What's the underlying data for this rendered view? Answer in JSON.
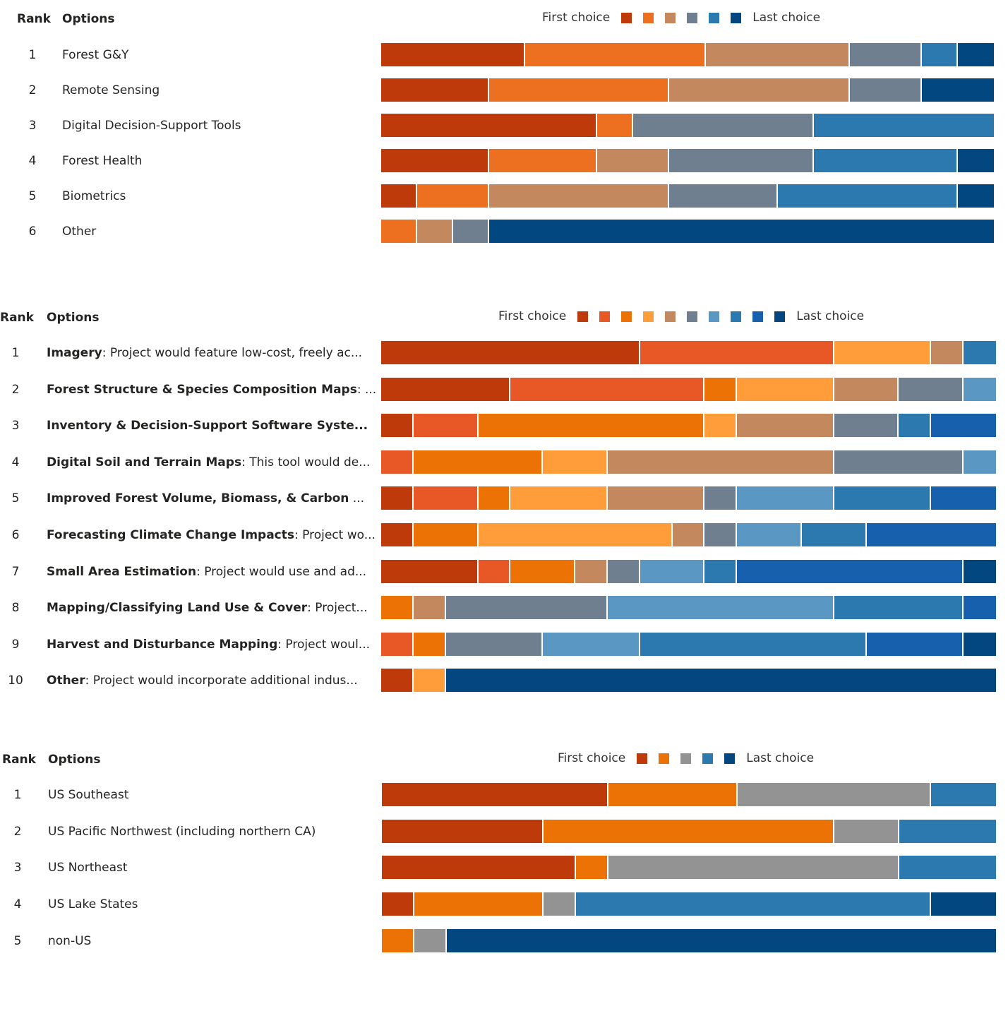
{
  "chart_data": [
    {
      "type": "stacked-bar",
      "headers": {
        "rank": "Rank",
        "options": "Options"
      },
      "legend": {
        "first": "First choice",
        "last": "Last choice",
        "colors": [
          "#BF3A0A",
          "#EC7020",
          "#C4885E",
          "#707F8F",
          "#2C79B0",
          "#02477F"
        ]
      },
      "rows": [
        {
          "rank": "1",
          "label": "Forest G&Y",
          "bold": "",
          "values": [
            4,
            5,
            4,
            2,
            1,
            1
          ]
        },
        {
          "rank": "2",
          "label": "Remote Sensing",
          "bold": "",
          "values": [
            3,
            5,
            5,
            2,
            0,
            2
          ]
        },
        {
          "rank": "3",
          "label": "Digital Decision-Support Tools",
          "bold": "",
          "values": [
            6,
            1,
            0,
            5,
            5,
            0
          ]
        },
        {
          "rank": "4",
          "label": "Forest Health",
          "bold": "",
          "values": [
            3,
            3,
            2,
            4,
            4,
            1
          ]
        },
        {
          "rank": "5",
          "label": "Biometrics",
          "bold": "",
          "values": [
            1,
            2,
            5,
            3,
            5,
            1
          ]
        },
        {
          "rank": "6",
          "label": "Other",
          "bold": "",
          "values": [
            0,
            1,
            1,
            1,
            0,
            14
          ]
        }
      ]
    },
    {
      "type": "stacked-bar",
      "headers": {
        "rank": "Rank",
        "options": "Options"
      },
      "legend": {
        "first": "First choice",
        "last": "Last choice",
        "colors": [
          "#BF3A0A",
          "#E85726",
          "#EC7206",
          "#FF9D3B",
          "#C4885E",
          "#707F8F",
          "#5B97C3",
          "#2C79B0",
          "#1660AE",
          "#02477F"
        ]
      },
      "rows": [
        {
          "rank": "1",
          "bold": "Imagery",
          "label": ": Project would feature low-cost, freely ac...",
          "values": [
            8,
            6,
            0,
            3,
            1,
            0,
            0,
            1,
            0,
            0
          ]
        },
        {
          "rank": "2",
          "bold": "Forest Structure & Species Composition Maps",
          "label": ": ...",
          "values": [
            4,
            6,
            1,
            3,
            2,
            2,
            1,
            0,
            0,
            0
          ]
        },
        {
          "rank": "3",
          "bold": "Inventory & Decision-Support Software Syste...",
          "label": "",
          "values": [
            1,
            2,
            7,
            1,
            3,
            2,
            0,
            1,
            2,
            0
          ]
        },
        {
          "rank": "4",
          "bold": "Digital Soil and Terrain Maps",
          "label": ": This tool would de...",
          "values": [
            0,
            1,
            4,
            2,
            7,
            4,
            1,
            0,
            0,
            0
          ]
        },
        {
          "rank": "5",
          "bold": "Improved Forest Volume, Biomass, & Carbon",
          "label": " ...",
          "values": [
            1,
            2,
            1,
            3,
            3,
            1,
            3,
            3,
            2,
            0
          ]
        },
        {
          "rank": "6",
          "bold": "Forecasting Climate Change Impacts",
          "label": ": Project wo...",
          "values": [
            1,
            0,
            2,
            6,
            1,
            1,
            2,
            2,
            4,
            0
          ]
        },
        {
          "rank": "7",
          "bold": "Small Area Estimation",
          "label": ": Project would use and ad...",
          "values": [
            3,
            1,
            2,
            0,
            1,
            1,
            2,
            1,
            7,
            1
          ]
        },
        {
          "rank": "8",
          "bold": "Mapping/Classifying Land Use & Cover",
          "label": ": Project...",
          "values": [
            0,
            0,
            1,
            0,
            1,
            5,
            7,
            4,
            1,
            0
          ]
        },
        {
          "rank": "9",
          "bold": "Harvest and Disturbance Mapping",
          "label": ": Project woul...",
          "values": [
            0,
            1,
            1,
            0,
            0,
            3,
            3,
            7,
            3,
            1
          ]
        },
        {
          "rank": "10",
          "bold": "Other",
          "label": ": Project would incorporate additional indus...",
          "values": [
            1,
            0,
            0,
            1,
            0,
            0,
            0,
            0,
            0,
            17
          ]
        }
      ]
    },
    {
      "type": "stacked-bar",
      "headers": {
        "rank": "Rank",
        "options": "Options"
      },
      "legend": {
        "first": "First choice",
        "last": "Last choice",
        "colors": [
          "#BF3A0A",
          "#EC7206",
          "#939393",
          "#2C79B0",
          "#02477F"
        ]
      },
      "rows": [
        {
          "rank": "1",
          "label": "US Southeast",
          "bold": "",
          "values": [
            7,
            4,
            6,
            2,
            0
          ]
        },
        {
          "rank": "2",
          "label": "US Pacific Northwest (including northern CA)",
          "bold": "",
          "values": [
            5,
            9,
            2,
            3,
            0
          ]
        },
        {
          "rank": "3",
          "label": "US Northeast",
          "bold": "",
          "values": [
            6,
            1,
            9,
            3,
            0
          ]
        },
        {
          "rank": "4",
          "label": "US Lake States",
          "bold": "",
          "values": [
            1,
            4,
            1,
            11,
            2
          ]
        },
        {
          "rank": "5",
          "label": "non-US",
          "bold": "",
          "values": [
            0,
            1,
            1,
            0,
            17
          ]
        }
      ]
    }
  ]
}
